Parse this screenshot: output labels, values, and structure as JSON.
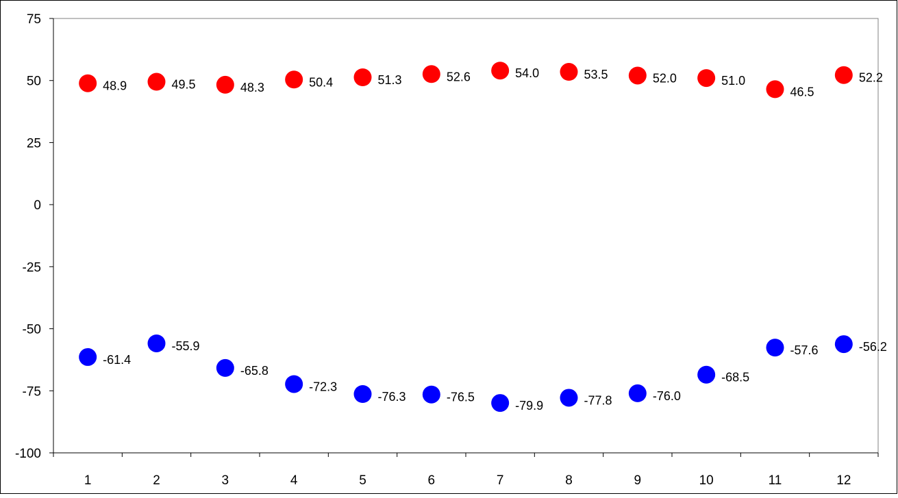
{
  "chart_data": {
    "type": "scatter",
    "title": "",
    "xlabel": "",
    "ylabel": "",
    "categories": [
      "1",
      "2",
      "3",
      "4",
      "5",
      "6",
      "7",
      "8",
      "9",
      "10",
      "11",
      "12"
    ],
    "ylim": [
      -100,
      75
    ],
    "yticks": [
      75,
      50,
      25,
      0,
      -25,
      -50,
      -75,
      -100
    ],
    "grid": false,
    "legend": "none",
    "series": [
      {
        "color": "#ff0000",
        "values": [
          48.9,
          49.5,
          48.3,
          50.4,
          51.3,
          52.6,
          54.0,
          53.5,
          52.0,
          51.0,
          46.5,
          52.2
        ],
        "labels": [
          "48.9",
          "49.5",
          "48.3",
          "50.4",
          "51.3",
          "52.6",
          "54.0",
          "53.5",
          "52.0",
          "51.0",
          "46.5",
          "52.2"
        ]
      },
      {
        "color": "#0000ff",
        "values": [
          -61.4,
          -55.9,
          -65.8,
          -72.3,
          -76.3,
          -76.5,
          -79.9,
          -77.8,
          -76.0,
          -68.5,
          -57.6,
          -56.2
        ],
        "labels": [
          "-61.4",
          "-55.9",
          "-65.8",
          "-72.3",
          "-76.3",
          "-76.5",
          "-79.9",
          "-77.8",
          "-76.0",
          "-68.5",
          "-57.6",
          "-56.2"
        ]
      }
    ]
  }
}
